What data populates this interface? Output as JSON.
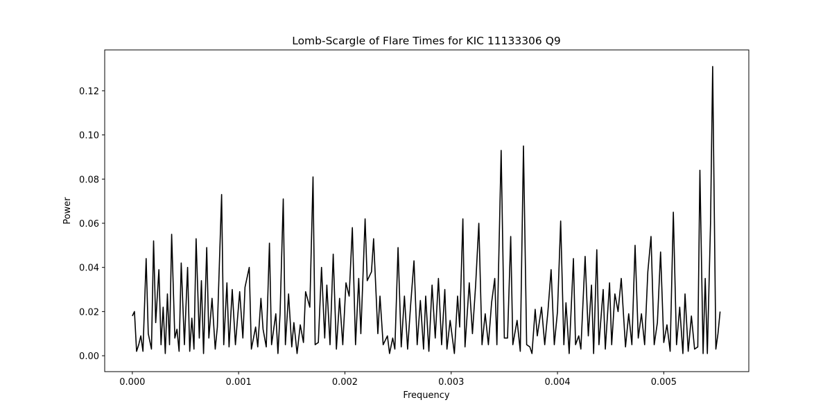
{
  "chart_data": {
    "type": "line",
    "title": "Lomb-Scargle of Flare Times for KIC 11133306 Q9",
    "xlabel": "Frequency",
    "ylabel": "Power",
    "color": "#000000",
    "xlim": [
      -0.00026,
      0.0058
    ],
    "ylim": [
      -0.0072,
      0.1385
    ],
    "xticks": [
      {
        "value": 0,
        "label": "0.000"
      },
      {
        "value": 0.001,
        "label": "0.001"
      },
      {
        "value": 0.002,
        "label": "0.002"
      },
      {
        "value": 0.003,
        "label": "0.003"
      },
      {
        "value": 0.004,
        "label": "0.004"
      },
      {
        "value": 0.005,
        "label": "0.005"
      }
    ],
    "yticks": [
      {
        "value": 0,
        "label": "0.00"
      },
      {
        "value": 0.02,
        "label": "0.02"
      },
      {
        "value": 0.04,
        "label": "0.04"
      },
      {
        "value": 0.06,
        "label": "0.06"
      },
      {
        "value": 0.08,
        "label": "0.08"
      },
      {
        "value": 0.1,
        "label": "0.10"
      },
      0.12
    ],
    "x": [
      0,
      2e-05,
      4e-05,
      6e-05,
      8e-05,
      0.0001,
      0.00013,
      0.00015,
      0.00018,
      0.0002,
      0.00022,
      0.00025,
      0.00027,
      0.00029,
      0.00031,
      0.00033,
      0.00035,
      0.00037,
      0.0004,
      0.00042,
      0.00044,
      0.00046,
      0.00049,
      0.00052,
      0.00054,
      0.00056,
      0.00058,
      0.0006,
      0.00063,
      0.00065,
      0.00067,
      0.0007,
      0.00072,
      0.00075,
      0.00078,
      0.0008,
      0.00084,
      0.00086,
      0.00089,
      0.00091,
      0.00094,
      0.00097,
      0.00101,
      0.00104,
      0.00106,
      0.0011,
      0.00112,
      0.00116,
      0.00118,
      0.00121,
      0.00123,
      0.00126,
      0.00129,
      0.00131,
      0.00135,
      0.00137,
      0.00139,
      0.00142,
      0.00144,
      0.00147,
      0.0015,
      0.00152,
      0.00155,
      0.00158,
      0.00161,
      0.00163,
      0.00167,
      0.0017,
      0.00172,
      0.00175,
      0.00178,
      0.00181,
      0.00183,
      0.00186,
      0.00189,
      0.00192,
      0.00195,
      0.00198,
      0.00201,
      0.00204,
      0.00207,
      0.0021,
      0.00213,
      0.00215,
      0.00219,
      0.00221,
      0.00225,
      0.00227,
      0.00231,
      0.00233,
      0.00236,
      0.0024,
      0.00242,
      0.00245,
      0.00247,
      0.0025,
      0.00253,
      0.00256,
      0.00259,
      0.00262,
      0.00265,
      0.00268,
      0.00271,
      0.00274,
      0.00276,
      0.00279,
      0.00282,
      0.00285,
      0.00288,
      0.00291,
      0.00294,
      0.00296,
      0.00299,
      0.00303,
      0.00306,
      0.00308,
      0.00311,
      0.00313,
      0.00317,
      0.0032,
      0.00323,
      0.00326,
      0.00329,
      0.00332,
      0.00335,
      0.00338,
      0.00341,
      0.00343,
      0.00347,
      0.0035,
      0.00353,
      0.00356,
      0.00358,
      0.00362,
      0.00365,
      0.00368,
      0.00371,
      0.00374,
      0.00376,
      0.00379,
      0.00381,
      0.00385,
      0.00388,
      0.00391,
      0.00394,
      0.00397,
      0.004,
      0.00403,
      0.00406,
      0.00408,
      0.00411,
      0.00415,
      0.00417,
      0.0042,
      0.00422,
      0.00426,
      0.00429,
      0.00432,
      0.00434,
      0.00437,
      0.00439,
      0.00443,
      0.00445,
      0.00449,
      0.00451,
      0.00454,
      0.00457,
      0.0046,
      0.00464,
      0.00467,
      0.0047,
      0.00473,
      0.00476,
      0.00479,
      0.00482,
      0.00485,
      0.00488,
      0.00491,
      0.00494,
      0.00497,
      0.005,
      0.00503,
      0.00506,
      0.00509,
      0.00512,
      0.00515,
      0.00518,
      0.0052,
      0.00523,
      0.00526,
      0.00529,
      0.00532,
      0.00534,
      0.00537,
      0.00539,
      0.00541,
      0.00544,
      0.00546,
      0.00549,
      0.00551,
      0.00553
    ],
    "values": [
      0.018,
      0.02,
      0.002,
      0.005,
      0.009,
      0.002,
      0.044,
      0.01,
      0.003,
      0.052,
      0.015,
      0.039,
      0.005,
      0.022,
      0.001,
      0.028,
      0.005,
      0.055,
      0.008,
      0.012,
      0.002,
      0.042,
      0.005,
      0.04,
      0.002,
      0.017,
      0.003,
      0.053,
      0.008,
      0.034,
      0.001,
      0.049,
      0.008,
      0.026,
      0.003,
      0.013,
      0.073,
      0.005,
      0.033,
      0.004,
      0.03,
      0.005,
      0.029,
      0.008,
      0.031,
      0.04,
      0.003,
      0.013,
      0.004,
      0.026,
      0.012,
      0.004,
      0.051,
      0.005,
      0.019,
      0.001,
      0.019,
      0.071,
      0.005,
      0.028,
      0.004,
      0.015,
      0.001,
      0.014,
      0.006,
      0.029,
      0.022,
      0.081,
      0.005,
      0.006,
      0.04,
      0.008,
      0.032,
      0.005,
      0.046,
      0.003,
      0.026,
      0.005,
      0.033,
      0.027,
      0.058,
      0.005,
      0.035,
      0.01,
      0.062,
      0.034,
      0.038,
      0.053,
      0.01,
      0.027,
      0.005,
      0.009,
      0.001,
      0.008,
      0.003,
      0.049,
      0.004,
      0.027,
      0.003,
      0.024,
      0.043,
      0.005,
      0.025,
      0.003,
      0.027,
      0.002,
      0.032,
      0.008,
      0.035,
      0.005,
      0.03,
      0.003,
      0.016,
      0.001,
      0.027,
      0.013,
      0.062,
      0.004,
      0.033,
      0.01,
      0.032,
      0.06,
      0.005,
      0.019,
      0.005,
      0.024,
      0.035,
      0.005,
      0.093,
      0.008,
      0.008,
      0.054,
      0.005,
      0.016,
      0.002,
      0.095,
      0.005,
      0.004,
      0.001,
      0.021,
      0.009,
      0.022,
      0.005,
      0.02,
      0.039,
      0.005,
      0.02,
      0.061,
      0.005,
      0.024,
      0.001,
      0.044,
      0.005,
      0.009,
      0.003,
      0.045,
      0.009,
      0.032,
      0.001,
      0.048,
      0.005,
      0.03,
      0.003,
      0.033,
      0.005,
      0.028,
      0.02,
      0.035,
      0.004,
      0.019,
      0.005,
      0.05,
      0.008,
      0.019,
      0.005,
      0.038,
      0.054,
      0.005,
      0.015,
      0.047,
      0.006,
      0.014,
      0.002,
      0.065,
      0.005,
      0.022,
      0.001,
      0.028,
      0.002,
      0.018,
      0.003,
      0.004,
      0.084,
      0.001,
      0.035,
      0.001,
      0.06,
      0.131,
      0.003,
      0.01,
      0.02
    ]
  }
}
